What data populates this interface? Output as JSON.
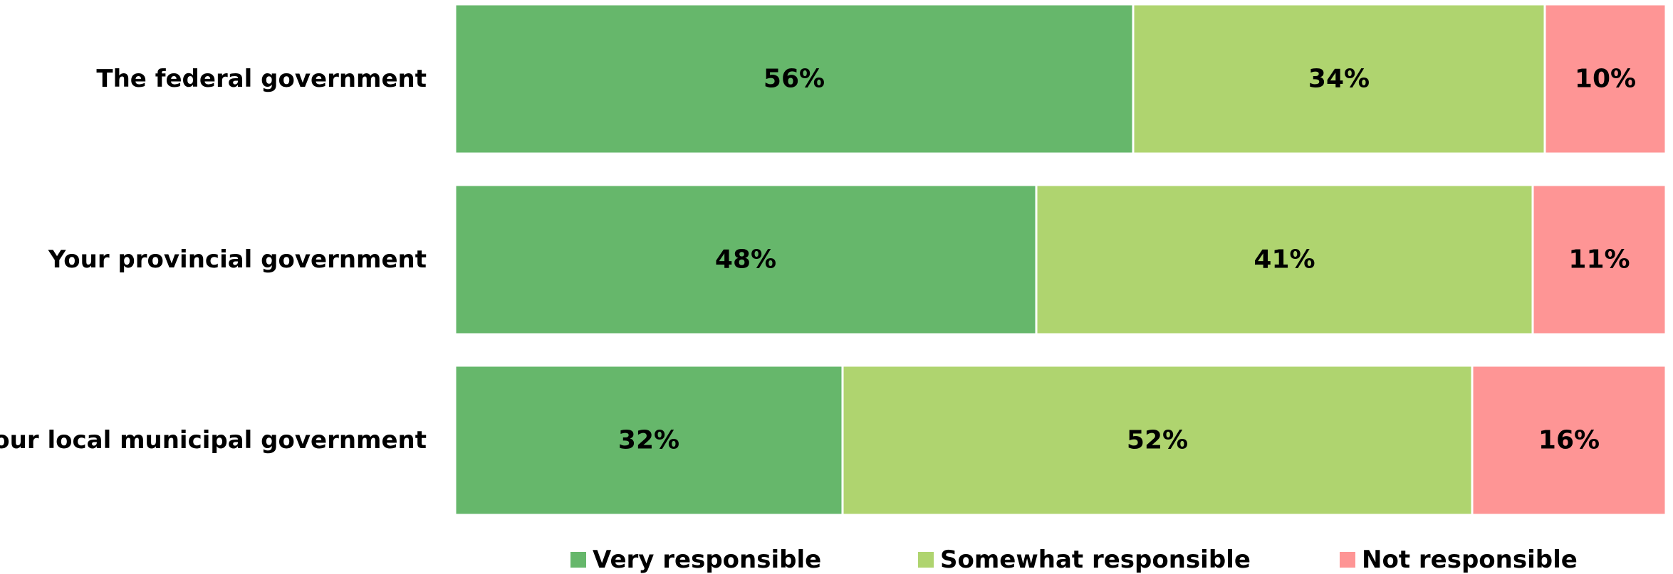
{
  "chart_data": {
    "type": "bar",
    "orientation": "horizontal",
    "stacked": true,
    "normalized": true,
    "categories": [
      "The federal government",
      "Your provincial government",
      "Your local municipal government"
    ],
    "series": [
      {
        "name": "Very responsible",
        "values": [
          56,
          48,
          32
        ],
        "labels": [
          "56%",
          "48%",
          "32%"
        ],
        "color": "#66b76b"
      },
      {
        "name": "Somewhat responsible",
        "values": [
          34,
          41,
          52
        ],
        "labels": [
          "34%",
          "41%",
          "52%"
        ],
        "color": "#afd46f"
      },
      {
        "name": "Not responsible",
        "values": [
          10,
          11,
          16
        ],
        "labels": [
          "10%",
          "11%",
          "16%"
        ],
        "color": "#fe9595"
      }
    ],
    "xlim": [
      0,
      100
    ],
    "grid": false,
    "legend_position": "bottom"
  }
}
